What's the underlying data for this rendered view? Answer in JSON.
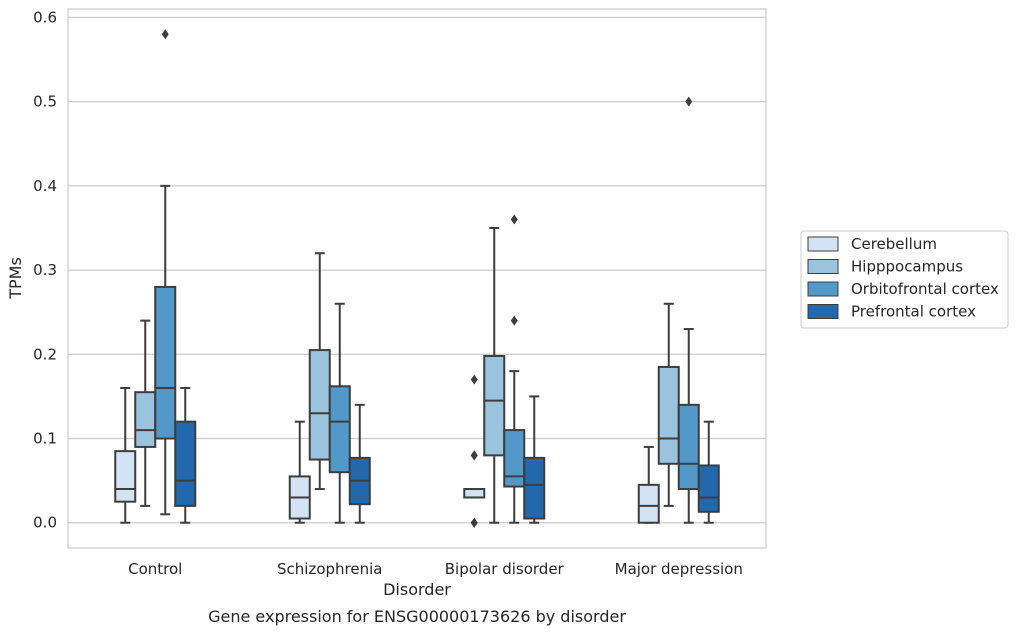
{
  "chart_data": {
    "type": "box",
    "caption": "Gene expression for ENSG00000173626 by disorder",
    "xlabel": "Disorder",
    "ylabel": "TPMs",
    "ylim": [
      -0.03,
      0.61
    ],
    "yticks": [
      0.0,
      0.1,
      0.2,
      0.3,
      0.4,
      0.5,
      0.6
    ],
    "ytick_labels": [
      "0.0",
      "0.1",
      "0.2",
      "0.3",
      "0.4",
      "0.5",
      "0.6"
    ],
    "grid": "horizontal",
    "legend_position": "right",
    "categories": [
      "Control",
      "Schizophrenia",
      "Bipolar disorder",
      "Major depression"
    ],
    "series": [
      {
        "name": "Cerebellum",
        "color": "#d4e3f3",
        "boxes": [
          {
            "whislo": 0.0,
            "q1": 0.025,
            "med": 0.04,
            "q3": 0.085,
            "whishi": 0.16,
            "fliers": []
          },
          {
            "whislo": 0.0,
            "q1": 0.005,
            "med": 0.03,
            "q3": 0.055,
            "whishi": 0.12,
            "fliers": []
          },
          {
            "whislo": 0.03,
            "q1": 0.03,
            "med": 0.04,
            "q3": 0.04,
            "whishi": 0.04,
            "fliers": [
              0.0,
              0.0,
              0.08,
              0.08,
              0.17
            ]
          },
          {
            "whislo": 0.0,
            "q1": 0.0,
            "med": 0.02,
            "q3": 0.045,
            "whishi": 0.09,
            "fliers": []
          }
        ]
      },
      {
        "name": "Hipppocampus",
        "color": "#9ac4dd",
        "boxes": [
          {
            "whislo": 0.02,
            "q1": 0.09,
            "med": 0.11,
            "q3": 0.155,
            "whishi": 0.24,
            "fliers": []
          },
          {
            "whislo": 0.04,
            "q1": 0.075,
            "med": 0.13,
            "q3": 0.205,
            "whishi": 0.32,
            "fliers": []
          },
          {
            "whislo": 0.0,
            "q1": 0.08,
            "med": 0.145,
            "q3": 0.198,
            "whishi": 0.35,
            "fliers": []
          },
          {
            "whislo": 0.02,
            "q1": 0.07,
            "med": 0.1,
            "q3": 0.185,
            "whishi": 0.26,
            "fliers": []
          }
        ]
      },
      {
        "name": "Orbitofrontal cortex",
        "color": "#5298c9",
        "boxes": [
          {
            "whislo": 0.01,
            "q1": 0.1,
            "med": 0.16,
            "q3": 0.28,
            "whishi": 0.4,
            "fliers": [
              0.58
            ]
          },
          {
            "whislo": 0.0,
            "q1": 0.06,
            "med": 0.12,
            "q3": 0.162,
            "whishi": 0.26,
            "fliers": []
          },
          {
            "whislo": 0.0,
            "q1": 0.043,
            "med": 0.055,
            "q3": 0.11,
            "whishi": 0.18,
            "fliers": [
              0.24,
              0.36
            ]
          },
          {
            "whislo": 0.0,
            "q1": 0.04,
            "med": 0.07,
            "q3": 0.14,
            "whishi": 0.23,
            "fliers": [
              0.5
            ]
          }
        ]
      },
      {
        "name": "Prefrontal cortex",
        "color": "#2268ad",
        "boxes": [
          {
            "whislo": 0.0,
            "q1": 0.02,
            "med": 0.05,
            "q3": 0.12,
            "whishi": 0.16,
            "fliers": []
          },
          {
            "whislo": 0.0,
            "q1": 0.022,
            "med": 0.05,
            "q3": 0.077,
            "whishi": 0.14,
            "fliers": []
          },
          {
            "whislo": 0.0,
            "q1": 0.005,
            "med": 0.045,
            "q3": 0.077,
            "whishi": 0.15,
            "fliers": []
          },
          {
            "whislo": 0.0,
            "q1": 0.013,
            "med": 0.03,
            "q3": 0.068,
            "whishi": 0.12,
            "fliers": []
          }
        ]
      }
    ]
  }
}
